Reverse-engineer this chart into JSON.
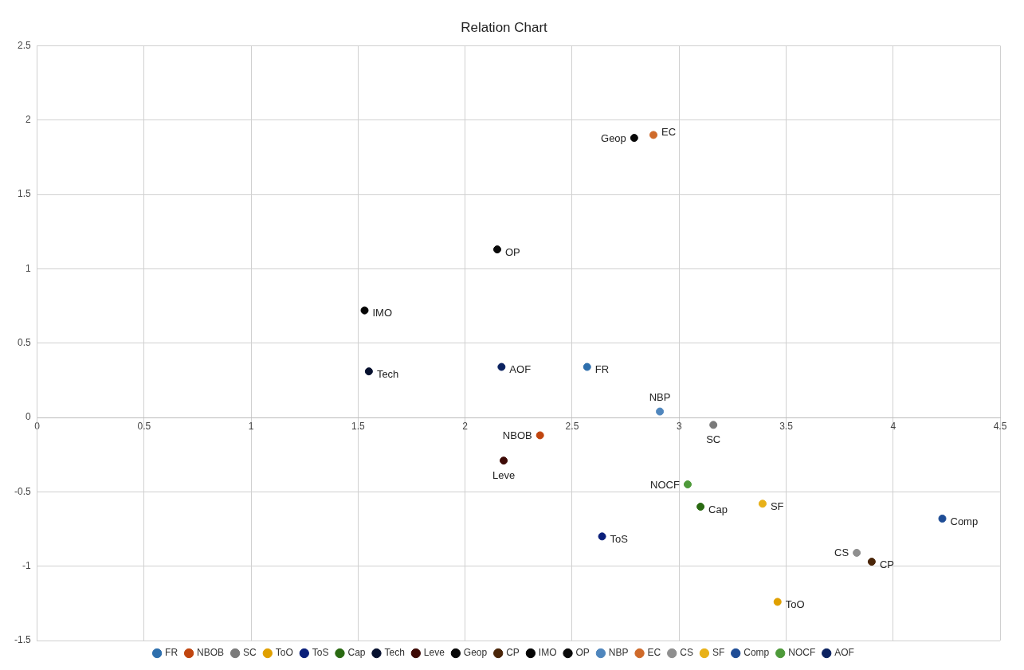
{
  "chart_data": {
    "type": "scatter",
    "title": "Relation Chart",
    "xlim": [
      0,
      4.5
    ],
    "ylim": [
      -1.5,
      2.5
    ],
    "xticks": [
      0,
      0.5,
      1,
      1.5,
      2,
      2.5,
      3,
      3.5,
      4,
      4.5
    ],
    "yticks": [
      -1.5,
      -1,
      -0.5,
      0,
      0.5,
      1,
      1.5,
      2,
      2.5
    ],
    "grid": true,
    "legend": "bottom",
    "marker": "circle",
    "series": [
      {
        "name": "FR",
        "color": "#2e6fad",
        "x": [
          2.57
        ],
        "values": [
          0.34
        ]
      },
      {
        "name": "NBOB",
        "color": "#c0450f",
        "x": [
          2.35
        ],
        "values": [
          -0.12
        ]
      },
      {
        "name": "SC",
        "color": "#7a7a7a",
        "x": [
          3.16
        ],
        "values": [
          -0.05
        ]
      },
      {
        "name": "ToO",
        "color": "#e0a000",
        "x": [
          3.46
        ],
        "values": [
          -1.24
        ]
      },
      {
        "name": "ToS",
        "color": "#0a1f7a",
        "x": [
          2.64
        ],
        "values": [
          -0.8
        ]
      },
      {
        "name": "Cap",
        "color": "#2a6a12",
        "x": [
          3.1
        ],
        "values": [
          -0.6
        ]
      },
      {
        "name": "Tech",
        "color": "#06102e",
        "x": [
          1.55
        ],
        "values": [
          0.31
        ]
      },
      {
        "name": "Leve",
        "color": "#3e0a06",
        "x": [
          2.18
        ],
        "values": [
          -0.29
        ]
      },
      {
        "name": "Geop",
        "color": "#080808",
        "x": [
          2.79
        ],
        "values": [
          1.88
        ]
      },
      {
        "name": "CP",
        "color": "#4a2508",
        "x": [
          3.9
        ],
        "values": [
          -0.97
        ]
      },
      {
        "name": "IMO",
        "color": "#050505",
        "x": [
          1.53
        ],
        "values": [
          0.72
        ]
      },
      {
        "name": "OP",
        "color": "#0a0a0a",
        "x": [
          2.15
        ],
        "values": [
          1.13
        ]
      },
      {
        "name": "NBP",
        "color": "#4f86bd",
        "x": [
          2.91
        ],
        "values": [
          0.04
        ]
      },
      {
        "name": "EC",
        "color": "#cf6a2a",
        "x": [
          2.88
        ],
        "values": [
          1.9
        ]
      },
      {
        "name": "CS",
        "color": "#8f8f8f",
        "x": [
          3.83
        ],
        "values": [
          -0.91
        ]
      },
      {
        "name": "SF",
        "color": "#e8b118",
        "x": [
          3.39
        ],
        "values": [
          -0.58
        ]
      },
      {
        "name": "Comp",
        "color": "#1f4d96",
        "x": [
          4.23
        ],
        "values": [
          -0.68
        ]
      },
      {
        "name": "NOCF",
        "color": "#4e9a3a",
        "x": [
          3.04
        ],
        "values": [
          -0.45
        ]
      },
      {
        "name": "AOF",
        "color": "#0b2260",
        "x": [
          2.17
        ],
        "values": [
          0.34
        ]
      }
    ]
  }
}
